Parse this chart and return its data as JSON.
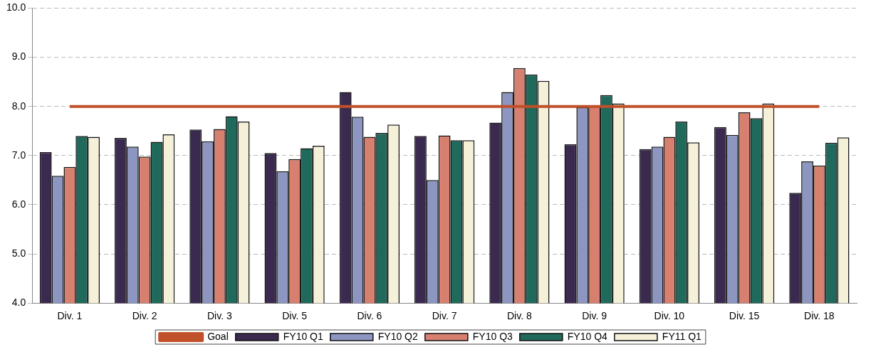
{
  "chart_data": {
    "type": "bar",
    "categories": [
      "Div. 1",
      "Div. 2",
      "Div. 3",
      "Div. 5",
      "Div. 6",
      "Div. 7",
      "Div. 8",
      "Div. 9",
      "Div. 10",
      "Div. 15",
      "Div. 18"
    ],
    "series": [
      {
        "name": "FY10 Q1",
        "color": "#3b2a4f",
        "values": [
          7.07,
          7.36,
          7.53,
          7.05,
          8.29,
          7.4,
          7.67,
          7.23,
          7.13,
          7.58,
          6.24
        ]
      },
      {
        "name": "FY10 Q2",
        "color": "#8c96c0",
        "values": [
          6.59,
          7.18,
          7.29,
          6.68,
          7.79,
          6.5,
          8.29,
          7.98,
          7.18,
          7.42,
          6.88
        ]
      },
      {
        "name": "FY10 Q3",
        "color": "#d88070",
        "values": [
          6.77,
          6.98,
          7.54,
          6.93,
          7.38,
          7.41,
          8.78,
          8.02,
          7.38,
          7.88,
          6.8
        ]
      },
      {
        "name": "FY10 Q4",
        "color": "#1f6a5a",
        "values": [
          7.4,
          7.28,
          7.8,
          7.15,
          7.46,
          7.31,
          8.65,
          8.23,
          7.69,
          7.76,
          7.26
        ]
      },
      {
        "name": "FY11 Q1",
        "color": "#f5f0d8",
        "values": [
          7.38,
          7.43,
          7.69,
          7.2,
          7.63,
          7.31,
          8.52,
          8.06,
          7.27,
          8.06,
          7.37
        ]
      },
      {
        "name": "Goal",
        "type": "line",
        "color": "#c0502a",
        "values": [
          8,
          8,
          8,
          8,
          8,
          8,
          8,
          8,
          8,
          8,
          8
        ]
      }
    ],
    "ylim": [
      4,
      10
    ],
    "yticks": [
      {
        "value": 4,
        "label": "4.0"
      },
      {
        "value": 5,
        "label": "5.0"
      },
      {
        "value": 6,
        "label": "6.0"
      },
      {
        "value": 7,
        "label": "7.0"
      },
      {
        "value": 8,
        "label": "8.0"
      },
      {
        "value": 9,
        "label": "9.0"
      },
      {
        "value": 10,
        "label": "10.0"
      }
    ],
    "grid": "y",
    "legend": "bottom",
    "marker": "none"
  }
}
